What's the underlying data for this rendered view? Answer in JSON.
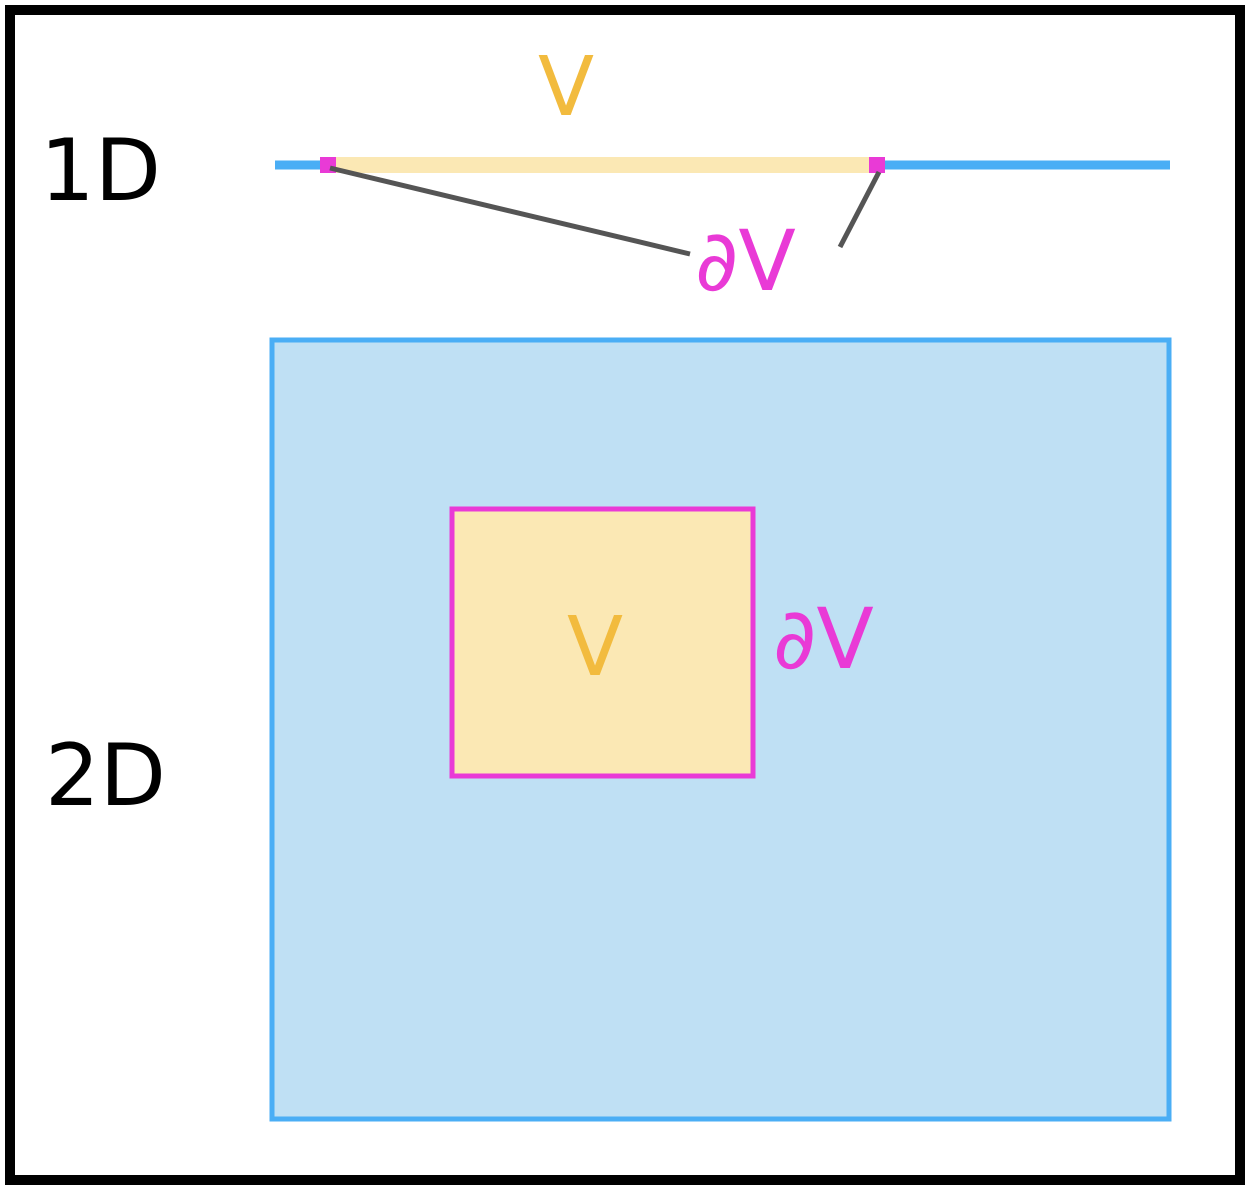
{
  "labels": {
    "one_d": "1D",
    "two_d": "2D",
    "volume_1d": "V",
    "boundary_1d": "∂V",
    "volume_2d": "V",
    "boundary_2d": "∂V"
  },
  "colors": {
    "frame": "#000000",
    "axis_blue": "#4aaef5",
    "region_blue_fill": "#bfe0f4",
    "region_blue_stroke": "#4aaef5",
    "volume_fill": "#fbe8b4",
    "volume_text": "#f2bb3e",
    "boundary_magenta": "#e93ad6",
    "leader_gray": "#555555",
    "text_black": "#000000"
  }
}
